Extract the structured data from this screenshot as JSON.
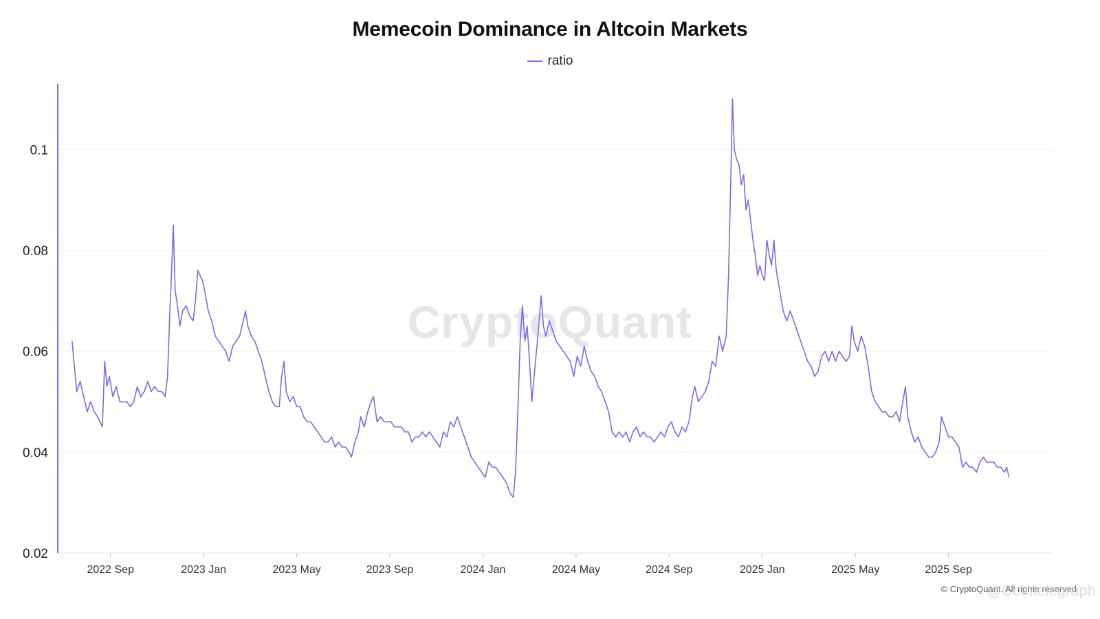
{
  "chart_data": {
    "type": "line",
    "title": "Memecoin Dominance in Altcoin Markets",
    "xlabel": "",
    "ylabel": "",
    "ylim": [
      0.02,
      0.113
    ],
    "y_ticks": [
      {
        "value": 0.02,
        "label": "0.02"
      },
      {
        "value": 0.04,
        "label": "0.04"
      },
      {
        "value": 0.06,
        "label": "0.06"
      },
      {
        "value": 0.08,
        "label": "0.08"
      },
      {
        "value": 0.1,
        "label": "0.1"
      }
    ],
    "x_range": [
      0,
      42.5
    ],
    "x_unit": "months since 2022-07",
    "x_ticks": [
      {
        "value": 2,
        "label": "2022 Sep"
      },
      {
        "value": 6,
        "label": "2023 Jan"
      },
      {
        "value": 10,
        "label": "2023 May"
      },
      {
        "value": 14,
        "label": "2023 Sep"
      },
      {
        "value": 18,
        "label": "2024 Jan"
      },
      {
        "value": 22,
        "label": "2024 May"
      },
      {
        "value": 26,
        "label": "2024 Sep"
      },
      {
        "value": 30,
        "label": "2025 Jan"
      },
      {
        "value": 34,
        "label": "2025 May"
      },
      {
        "value": 38,
        "label": "2025 Sep"
      }
    ],
    "grid": true,
    "legend": "top-center",
    "color": "#7b68ee",
    "series": [
      {
        "name": "ratio",
        "points": [
          [
            0.35,
            0.062
          ],
          [
            0.45,
            0.057
          ],
          [
            0.55,
            0.052
          ],
          [
            0.7,
            0.054
          ],
          [
            0.85,
            0.051
          ],
          [
            1.0,
            0.048
          ],
          [
            1.15,
            0.05
          ],
          [
            1.3,
            0.048
          ],
          [
            1.45,
            0.047
          ],
          [
            1.55,
            0.046
          ],
          [
            1.65,
            0.045
          ],
          [
            1.75,
            0.058
          ],
          [
            1.85,
            0.053
          ],
          [
            1.95,
            0.055
          ],
          [
            2.1,
            0.051
          ],
          [
            2.25,
            0.053
          ],
          [
            2.4,
            0.05
          ],
          [
            2.55,
            0.05
          ],
          [
            2.7,
            0.05
          ],
          [
            2.85,
            0.049
          ],
          [
            3.0,
            0.05
          ],
          [
            3.15,
            0.053
          ],
          [
            3.3,
            0.051
          ],
          [
            3.45,
            0.052
          ],
          [
            3.6,
            0.054
          ],
          [
            3.75,
            0.052
          ],
          [
            3.9,
            0.053
          ],
          [
            4.05,
            0.052
          ],
          [
            4.2,
            0.052
          ],
          [
            4.35,
            0.051
          ],
          [
            4.45,
            0.055
          ],
          [
            4.55,
            0.068
          ],
          [
            4.62,
            0.075
          ],
          [
            4.7,
            0.085
          ],
          [
            4.78,
            0.072
          ],
          [
            4.88,
            0.069
          ],
          [
            4.98,
            0.065
          ],
          [
            5.1,
            0.068
          ],
          [
            5.25,
            0.069
          ],
          [
            5.4,
            0.067
          ],
          [
            5.55,
            0.066
          ],
          [
            5.65,
            0.07
          ],
          [
            5.75,
            0.076
          ],
          [
            5.85,
            0.075
          ],
          [
            5.95,
            0.074
          ],
          [
            6.05,
            0.072
          ],
          [
            6.2,
            0.068
          ],
          [
            6.35,
            0.066
          ],
          [
            6.5,
            0.063
          ],
          [
            6.65,
            0.062
          ],
          [
            6.8,
            0.061
          ],
          [
            6.95,
            0.06
          ],
          [
            7.1,
            0.058
          ],
          [
            7.25,
            0.061
          ],
          [
            7.4,
            0.062
          ],
          [
            7.55,
            0.063
          ],
          [
            7.7,
            0.066
          ],
          [
            7.8,
            0.068
          ],
          [
            7.9,
            0.065
          ],
          [
            8.05,
            0.063
          ],
          [
            8.2,
            0.062
          ],
          [
            8.35,
            0.06
          ],
          [
            8.5,
            0.058
          ],
          [
            8.65,
            0.055
          ],
          [
            8.8,
            0.052
          ],
          [
            8.95,
            0.05
          ],
          [
            9.1,
            0.049
          ],
          [
            9.25,
            0.049
          ],
          [
            9.35,
            0.055
          ],
          [
            9.45,
            0.058
          ],
          [
            9.55,
            0.052
          ],
          [
            9.7,
            0.05
          ],
          [
            9.85,
            0.051
          ],
          [
            10.0,
            0.049
          ],
          [
            10.15,
            0.049
          ],
          [
            10.3,
            0.047
          ],
          [
            10.45,
            0.046
          ],
          [
            10.6,
            0.046
          ],
          [
            10.75,
            0.045
          ],
          [
            10.9,
            0.044
          ],
          [
            11.05,
            0.043
          ],
          [
            11.2,
            0.042
          ],
          [
            11.35,
            0.042
          ],
          [
            11.5,
            0.043
          ],
          [
            11.65,
            0.041
          ],
          [
            11.8,
            0.042
          ],
          [
            11.95,
            0.041
          ],
          [
            12.1,
            0.041
          ],
          [
            12.25,
            0.04
          ],
          [
            12.35,
            0.039
          ],
          [
            12.5,
            0.042
          ],
          [
            12.65,
            0.044
          ],
          [
            12.75,
            0.047
          ],
          [
            12.9,
            0.045
          ],
          [
            13.05,
            0.048
          ],
          [
            13.2,
            0.05
          ],
          [
            13.3,
            0.051
          ],
          [
            13.45,
            0.046
          ],
          [
            13.6,
            0.047
          ],
          [
            13.75,
            0.046
          ],
          [
            13.9,
            0.046
          ],
          [
            14.05,
            0.046
          ],
          [
            14.2,
            0.045
          ],
          [
            14.35,
            0.045
          ],
          [
            14.5,
            0.045
          ],
          [
            14.65,
            0.044
          ],
          [
            14.8,
            0.044
          ],
          [
            14.95,
            0.042
          ],
          [
            15.1,
            0.043
          ],
          [
            15.25,
            0.043
          ],
          [
            15.4,
            0.044
          ],
          [
            15.55,
            0.043
          ],
          [
            15.7,
            0.044
          ],
          [
            15.85,
            0.043
          ],
          [
            16.0,
            0.042
          ],
          [
            16.15,
            0.041
          ],
          [
            16.3,
            0.044
          ],
          [
            16.45,
            0.043
          ],
          [
            16.6,
            0.046
          ],
          [
            16.75,
            0.045
          ],
          [
            16.9,
            0.047
          ],
          [
            17.05,
            0.045
          ],
          [
            17.2,
            0.043
          ],
          [
            17.35,
            0.041
          ],
          [
            17.5,
            0.039
          ],
          [
            17.65,
            0.038
          ],
          [
            17.8,
            0.037
          ],
          [
            17.95,
            0.036
          ],
          [
            18.1,
            0.035
          ],
          [
            18.25,
            0.038
          ],
          [
            18.4,
            0.037
          ],
          [
            18.55,
            0.037
          ],
          [
            18.7,
            0.036
          ],
          [
            18.85,
            0.035
          ],
          [
            19.0,
            0.034
          ],
          [
            19.15,
            0.032
          ],
          [
            19.3,
            0.031
          ],
          [
            19.4,
            0.036
          ],
          [
            19.5,
            0.048
          ],
          [
            19.6,
            0.062
          ],
          [
            19.7,
            0.069
          ],
          [
            19.8,
            0.062
          ],
          [
            19.9,
            0.065
          ],
          [
            20.0,
            0.058
          ],
          [
            20.1,
            0.05
          ],
          [
            20.2,
            0.055
          ],
          [
            20.3,
            0.06
          ],
          [
            20.4,
            0.065
          ],
          [
            20.5,
            0.071
          ],
          [
            20.6,
            0.065
          ],
          [
            20.7,
            0.063
          ],
          [
            20.85,
            0.066
          ],
          [
            21.0,
            0.064
          ],
          [
            21.15,
            0.062
          ],
          [
            21.3,
            0.061
          ],
          [
            21.45,
            0.06
          ],
          [
            21.6,
            0.059
          ],
          [
            21.75,
            0.058
          ],
          [
            21.9,
            0.055
          ],
          [
            22.05,
            0.059
          ],
          [
            22.2,
            0.057
          ],
          [
            22.35,
            0.061
          ],
          [
            22.5,
            0.058
          ],
          [
            22.65,
            0.056
          ],
          [
            22.8,
            0.055
          ],
          [
            22.95,
            0.053
          ],
          [
            23.1,
            0.052
          ],
          [
            23.25,
            0.05
          ],
          [
            23.4,
            0.048
          ],
          [
            23.55,
            0.044
          ],
          [
            23.7,
            0.043
          ],
          [
            23.85,
            0.044
          ],
          [
            24.0,
            0.043
          ],
          [
            24.15,
            0.044
          ],
          [
            24.3,
            0.042
          ],
          [
            24.45,
            0.044
          ],
          [
            24.6,
            0.045
          ],
          [
            24.75,
            0.043
          ],
          [
            24.9,
            0.044
          ],
          [
            25.05,
            0.043
          ],
          [
            25.2,
            0.043
          ],
          [
            25.35,
            0.042
          ],
          [
            25.5,
            0.043
          ],
          [
            25.65,
            0.044
          ],
          [
            25.8,
            0.043
          ],
          [
            25.95,
            0.045
          ],
          [
            26.1,
            0.046
          ],
          [
            26.25,
            0.044
          ],
          [
            26.4,
            0.043
          ],
          [
            26.55,
            0.045
          ],
          [
            26.7,
            0.044
          ],
          [
            26.85,
            0.046
          ],
          [
            27.0,
            0.051
          ],
          [
            27.1,
            0.053
          ],
          [
            27.25,
            0.05
          ],
          [
            27.4,
            0.051
          ],
          [
            27.55,
            0.052
          ],
          [
            27.7,
            0.054
          ],
          [
            27.85,
            0.058
          ],
          [
            28.0,
            0.057
          ],
          [
            28.15,
            0.063
          ],
          [
            28.3,
            0.06
          ],
          [
            28.45,
            0.063
          ],
          [
            28.55,
            0.075
          ],
          [
            28.65,
            0.095
          ],
          [
            28.72,
            0.11
          ],
          [
            28.8,
            0.1
          ],
          [
            28.9,
            0.098
          ],
          [
            29.0,
            0.097
          ],
          [
            29.1,
            0.093
          ],
          [
            29.2,
            0.095
          ],
          [
            29.3,
            0.088
          ],
          [
            29.4,
            0.09
          ],
          [
            29.5,
            0.086
          ],
          [
            29.6,
            0.082
          ],
          [
            29.7,
            0.079
          ],
          [
            29.8,
            0.075
          ],
          [
            29.9,
            0.077
          ],
          [
            30.0,
            0.075
          ],
          [
            30.1,
            0.074
          ],
          [
            30.2,
            0.082
          ],
          [
            30.3,
            0.079
          ],
          [
            30.4,
            0.077
          ],
          [
            30.5,
            0.082
          ],
          [
            30.6,
            0.076
          ],
          [
            30.75,
            0.072
          ],
          [
            30.9,
            0.068
          ],
          [
            31.05,
            0.066
          ],
          [
            31.2,
            0.068
          ],
          [
            31.35,
            0.066
          ],
          [
            31.5,
            0.064
          ],
          [
            31.65,
            0.062
          ],
          [
            31.8,
            0.06
          ],
          [
            31.95,
            0.058
          ],
          [
            32.1,
            0.057
          ],
          [
            32.25,
            0.055
          ],
          [
            32.4,
            0.056
          ],
          [
            32.55,
            0.059
          ],
          [
            32.7,
            0.06
          ],
          [
            32.85,
            0.058
          ],
          [
            33.0,
            0.06
          ],
          [
            33.15,
            0.058
          ],
          [
            33.3,
            0.06
          ],
          [
            33.45,
            0.059
          ],
          [
            33.6,
            0.058
          ],
          [
            33.75,
            0.059
          ],
          [
            33.85,
            0.065
          ],
          [
            33.95,
            0.062
          ],
          [
            34.1,
            0.06
          ],
          [
            34.25,
            0.063
          ],
          [
            34.4,
            0.061
          ],
          [
            34.55,
            0.057
          ],
          [
            34.7,
            0.052
          ],
          [
            34.85,
            0.05
          ],
          [
            35.0,
            0.049
          ],
          [
            35.15,
            0.048
          ],
          [
            35.3,
            0.048
          ],
          [
            35.45,
            0.047
          ],
          [
            35.6,
            0.047
          ],
          [
            35.75,
            0.048
          ],
          [
            35.9,
            0.046
          ],
          [
            36.0,
            0.049
          ],
          [
            36.15,
            0.053
          ],
          [
            36.25,
            0.047
          ],
          [
            36.4,
            0.044
          ],
          [
            36.55,
            0.042
          ],
          [
            36.7,
            0.043
          ],
          [
            36.85,
            0.041
          ],
          [
            37.0,
            0.04
          ],
          [
            37.15,
            0.039
          ],
          [
            37.3,
            0.039
          ],
          [
            37.45,
            0.04
          ],
          [
            37.6,
            0.042
          ],
          [
            37.7,
            0.047
          ],
          [
            37.85,
            0.045
          ],
          [
            38.0,
            0.043
          ],
          [
            38.15,
            0.043
          ],
          [
            38.3,
            0.042
          ],
          [
            38.45,
            0.041
          ],
          [
            38.6,
            0.037
          ],
          [
            38.75,
            0.038
          ],
          [
            38.9,
            0.037
          ],
          [
            39.05,
            0.037
          ],
          [
            39.2,
            0.036
          ],
          [
            39.35,
            0.038
          ],
          [
            39.5,
            0.039
          ],
          [
            39.65,
            0.038
          ],
          [
            39.8,
            0.038
          ],
          [
            39.95,
            0.038
          ],
          [
            40.1,
            0.037
          ],
          [
            40.25,
            0.037
          ],
          [
            40.4,
            0.036
          ],
          [
            40.5,
            0.037
          ],
          [
            40.6,
            0.035
          ]
        ]
      }
    ]
  },
  "watermark": "CryptoQuant",
  "copyright": "© CryptoQuant. All rights reserved",
  "credit": "@Cointelegraph"
}
